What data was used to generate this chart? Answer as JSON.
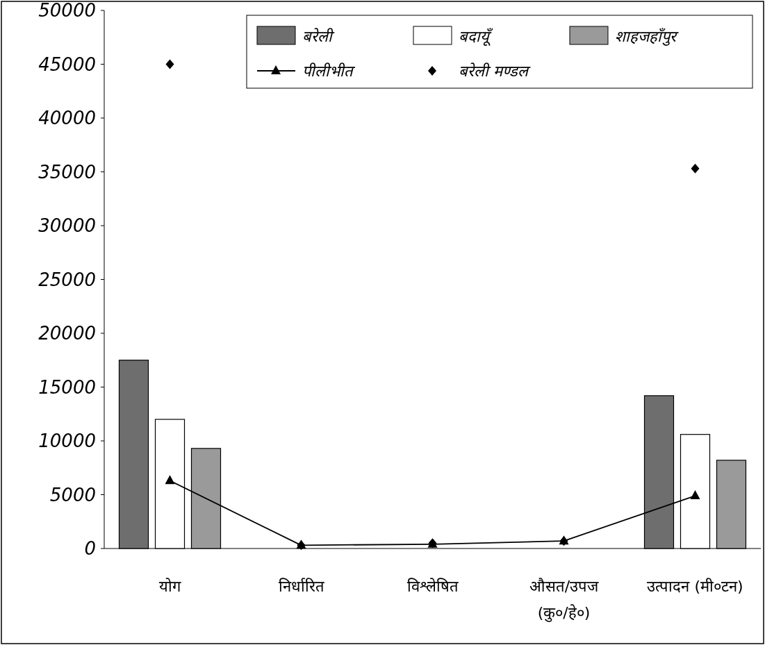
{
  "chart_data": {
    "type": "bar",
    "categories": [
      "योग",
      "निर्धारित",
      "विश्लेषित",
      "औसत/उपज\n(कु०/हे०)",
      "उत्पादन (मी०टन)"
    ],
    "series": [
      {
        "name": "बरेली",
        "color": "#6e6e6e",
        "values": [
          17500,
          null,
          null,
          null,
          14200
        ]
      },
      {
        "name": "बदायूँ",
        "color": "#ffffff",
        "values": [
          12000,
          null,
          null,
          null,
          10600
        ]
      },
      {
        "name": "शाहजहाँपुर",
        "color": "#9a9a9a",
        "values": [
          9300,
          null,
          null,
          null,
          8200
        ]
      },
      {
        "name": "पीलीभीत",
        "type": "line",
        "color": "#000000",
        "marker": "triangle",
        "values": [
          6300,
          300,
          400,
          700,
          4900
        ]
      },
      {
        "name": "बरेली मण्डल",
        "type": "scatter",
        "color": "#000000",
        "marker": "diamond",
        "values": [
          45000,
          300,
          500,
          700,
          35300
        ]
      }
    ],
    "ylim": [
      0,
      50000
    ],
    "yticks": [
      0,
      5000,
      10000,
      15000,
      20000,
      25000,
      30000,
      35000,
      40000,
      45000,
      50000
    ],
    "grid": false,
    "legend": "top right"
  }
}
